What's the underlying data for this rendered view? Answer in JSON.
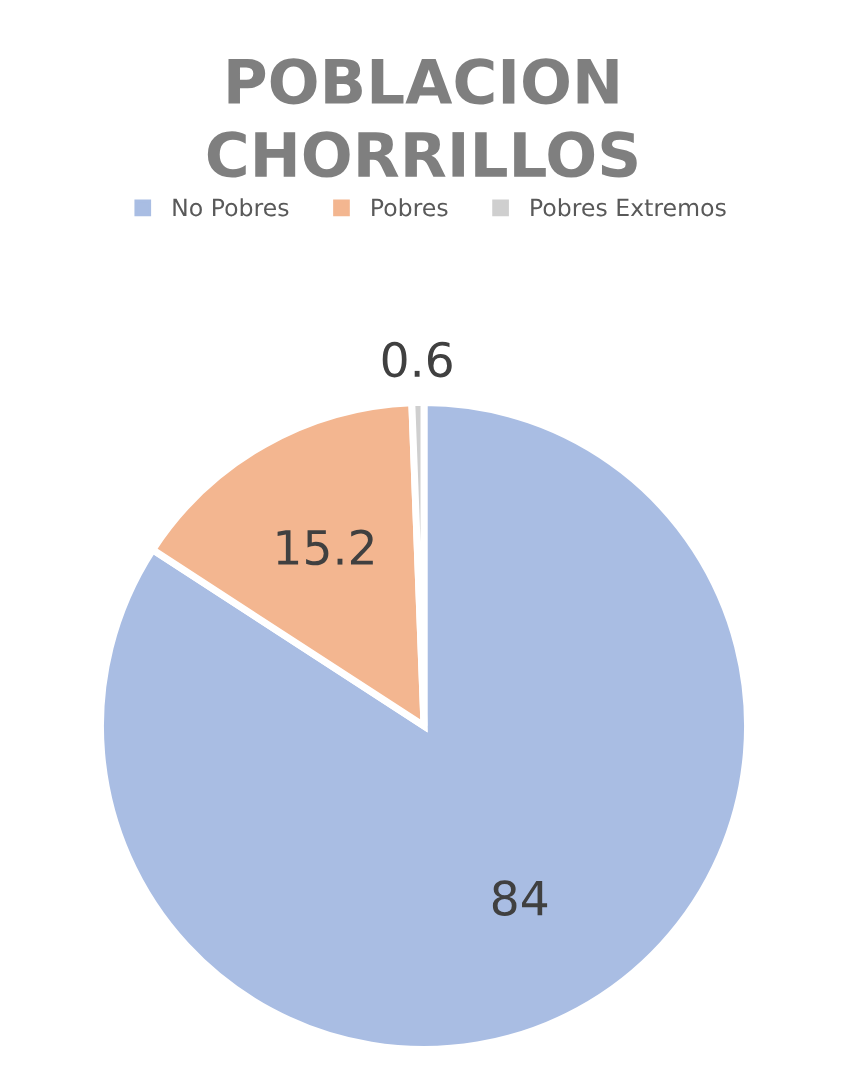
{
  "chart_data": {
    "type": "pie",
    "title": "POBLACION\nCHORRILLOS",
    "categories": [
      "No Pobres",
      "Pobres",
      "Pobres Extremos"
    ],
    "values": [
      84,
      15.2,
      0.6
    ],
    "colors": [
      "#a9bde3",
      "#f3b690",
      "#cfcfcf"
    ],
    "data_labels": true,
    "legend": "top"
  }
}
